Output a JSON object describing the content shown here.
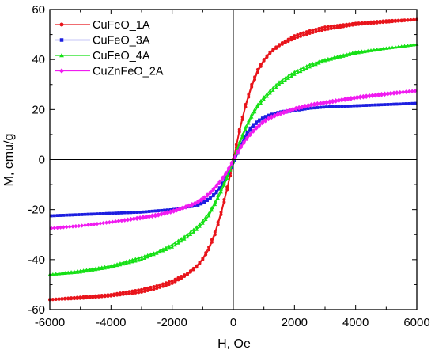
{
  "chart_data": {
    "type": "line",
    "title": "",
    "xlabel": "H, Oe",
    "ylabel": "M, emu/g",
    "xlim": [
      -6000,
      6000
    ],
    "ylim": [
      -60,
      60
    ],
    "xticks": [
      -6000,
      -4000,
      -2000,
      0,
      2000,
      4000,
      6000
    ],
    "yticks": [
      -60,
      -40,
      -20,
      0,
      20,
      40,
      60
    ],
    "grid": false,
    "zero_lines": true,
    "legend_position": "top-left",
    "series": [
      {
        "name": "CuFeO_1A",
        "color": "#e8141b",
        "marker": "circle",
        "x": [
          -6000,
          -5000,
          -4000,
          -3000,
          -2500,
          -2000,
          -1500,
          -1200,
          -1000,
          -800,
          -600,
          -400,
          -200,
          0,
          200,
          400,
          600,
          800,
          1000,
          1200,
          1500,
          2000,
          2500,
          3000,
          4000,
          5000,
          6000
        ],
        "y_up": [
          -56,
          -55,
          -54,
          -52,
          -50.5,
          -48.5,
          -45.5,
          -42.5,
          -39.5,
          -35,
          -29,
          -21,
          -11,
          0,
          12,
          22,
          30,
          36,
          40,
          43,
          46,
          49.5,
          51.5,
          53,
          54.5,
          55.5,
          56
        ],
        "y_down": [
          -56,
          -55.5,
          -54.5,
          -53,
          -51.5,
          -49.5,
          -46,
          -43,
          -40,
          -36,
          -30,
          -22,
          -12,
          -1,
          11,
          21,
          29,
          35,
          39.5,
          42.5,
          45.5,
          48.5,
          50.5,
          52,
          54,
          55,
          56
        ]
      },
      {
        "name": "CuFeO_3A",
        "color": "#1c1ee0",
        "marker": "square",
        "x": [
          -6000,
          -5000,
          -4000,
          -3000,
          -2500,
          -2000,
          -1500,
          -1200,
          -1000,
          -800,
          -600,
          -400,
          -200,
          0,
          200,
          400,
          600,
          800,
          1000,
          1200,
          1500,
          2000,
          2500,
          3000,
          4000,
          5000,
          6000
        ],
        "y_up": [
          -22.5,
          -22,
          -21.5,
          -21,
          -20.5,
          -20,
          -19,
          -18,
          -17,
          -15.5,
          -13.5,
          -10.5,
          -6,
          -1,
          5,
          10,
          13.5,
          15.5,
          17,
          18,
          19,
          20,
          20.5,
          21,
          21.5,
          22,
          22.5
        ],
        "y_down": [
          -22.5,
          -22,
          -21.5,
          -21,
          -20.5,
          -20,
          -19,
          -18.5,
          -17.5,
          -16,
          -14,
          -11,
          -7,
          -2,
          4,
          9,
          12.5,
          15,
          16.5,
          17.5,
          18.5,
          19.5,
          20.5,
          21,
          21.5,
          22,
          22.5
        ]
      },
      {
        "name": "CuFeO_4A",
        "color": "#16e016",
        "marker": "triangle",
        "x": [
          -6000,
          -5000,
          -4000,
          -3000,
          -2500,
          -2000,
          -1500,
          -1200,
          -1000,
          -800,
          -600,
          -400,
          -200,
          0,
          200,
          400,
          600,
          800,
          1000,
          1200,
          1500,
          2000,
          2500,
          3000,
          4000,
          5000,
          6000
        ],
        "y_up": [
          -46,
          -44.5,
          -42.5,
          -39,
          -37,
          -34,
          -30,
          -27,
          -24.5,
          -21.5,
          -17,
          -12,
          -6.5,
          0,
          7,
          13,
          18,
          22,
          25,
          27.5,
          31,
          35,
          38,
          40,
          43,
          44.5,
          46
        ],
        "y_down": [
          -46,
          -45,
          -43,
          -40,
          -37.5,
          -35,
          -31,
          -28,
          -25.5,
          -22.5,
          -18,
          -13,
          -7.5,
          -1,
          6,
          12,
          17,
          21,
          24,
          26.5,
          30,
          34,
          37,
          39.5,
          42.5,
          44.5,
          46
        ]
      },
      {
        "name": "CuZnFeO_2A",
        "color": "#f01cf0",
        "marker": "diamond",
        "x": [
          -6000,
          -5000,
          -4000,
          -3000,
          -2500,
          -2000,
          -1500,
          -1200,
          -1000,
          -800,
          -600,
          -400,
          -200,
          0,
          200,
          400,
          600,
          800,
          1000,
          1200,
          1500,
          2000,
          2500,
          3000,
          4000,
          5000,
          6000
        ],
        "y_up": [
          -27.5,
          -26.5,
          -25,
          -23,
          -22,
          -20.5,
          -18.5,
          -17,
          -15.5,
          -13.5,
          -11,
          -8,
          -4.5,
          0,
          4.5,
          8,
          11,
          13.5,
          15.5,
          17,
          18.5,
          20.5,
          22,
          23,
          25,
          26.5,
          27.5
        ],
        "y_down": [
          -27.5,
          -26.5,
          -25,
          -23.5,
          -22.5,
          -21,
          -19,
          -17.5,
          -16,
          -14,
          -11.5,
          -8.5,
          -5,
          -0.5,
          4,
          7.5,
          10.5,
          13,
          15,
          16.5,
          18,
          20,
          21.5,
          22.5,
          24.5,
          26,
          27.5
        ]
      }
    ]
  }
}
